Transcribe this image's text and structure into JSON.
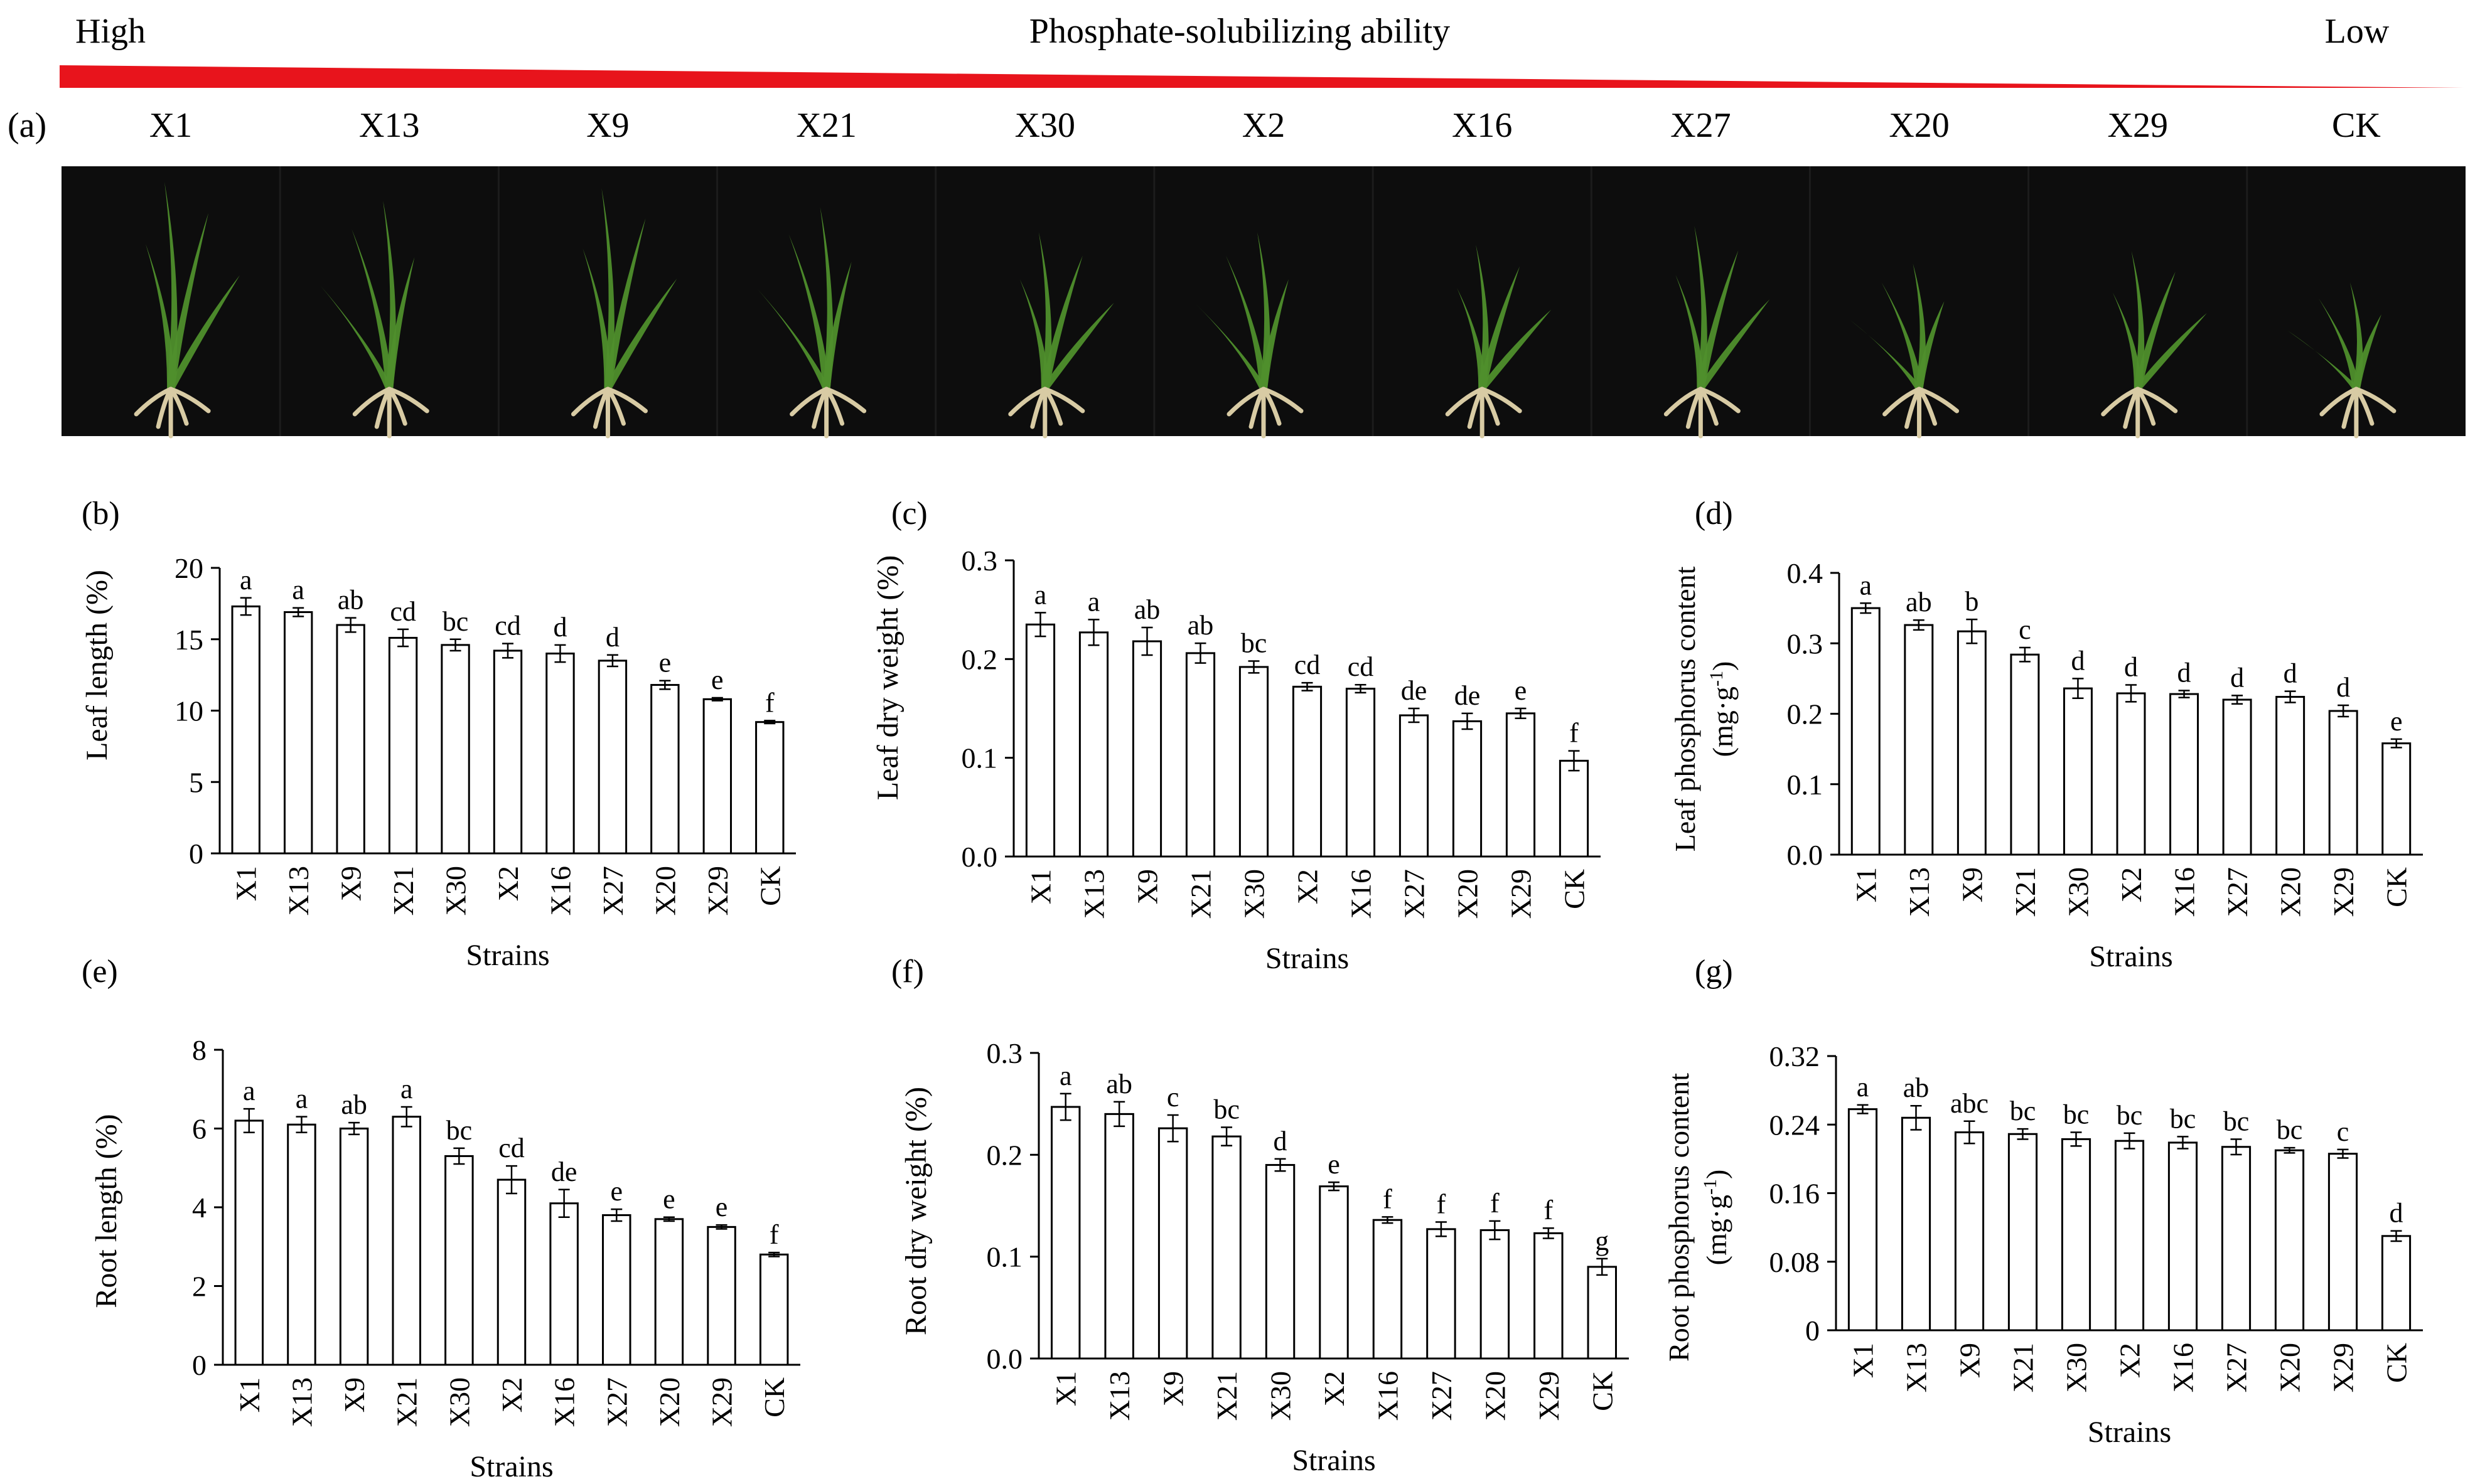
{
  "header": {
    "left_label": "High",
    "center_label": "Phosphate-solubilizing ability",
    "right_label": "Low",
    "gradient_color": "#e8141c",
    "panel_label": "(a)",
    "strains": [
      "X1",
      "X13",
      "X9",
      "X21",
      "X30",
      "X2",
      "X16",
      "X27",
      "X20",
      "X29",
      "CK"
    ]
  },
  "photo": {
    "background_color": "#0d0d0d",
    "leaf_color": "#4f8f2c",
    "root_color": "#d8cba4"
  },
  "chart_data": [
    {
      "panel": "(b)",
      "type": "bar",
      "categories": [
        "X1",
        "X13",
        "X9",
        "X21",
        "X30",
        "X2",
        "X16",
        "X27",
        "X20",
        "X29",
        "CK"
      ],
      "values": [
        17.3,
        16.9,
        16.0,
        15.1,
        14.6,
        14.2,
        14.0,
        13.5,
        11.8,
        10.8,
        9.2
      ],
      "errors": [
        0.6,
        0.3,
        0.5,
        0.6,
        0.4,
        0.5,
        0.6,
        0.4,
        0.3,
        0.1,
        0.1
      ],
      "letters": [
        "a",
        "a",
        "ab",
        "cd",
        "bc",
        "cd",
        "d",
        "d",
        "e",
        "e",
        "f"
      ],
      "ylabel": "Leaf length (%)",
      "xlabel": "Strains",
      "ylim": [
        0,
        20
      ],
      "yticks": [
        "0",
        "5",
        "10",
        "15",
        "20"
      ],
      "grid": false
    },
    {
      "panel": "(c)",
      "type": "bar",
      "categories": [
        "X1",
        "X13",
        "X9",
        "X21",
        "X30",
        "X2",
        "X16",
        "X27",
        "X20",
        "X29",
        "CK"
      ],
      "values": [
        0.235,
        0.227,
        0.218,
        0.206,
        0.192,
        0.172,
        0.17,
        0.143,
        0.137,
        0.145,
        0.097
      ],
      "errors": [
        0.012,
        0.013,
        0.014,
        0.01,
        0.006,
        0.004,
        0.004,
        0.007,
        0.008,
        0.005,
        0.01
      ],
      "letters": [
        "a",
        "a",
        "ab",
        "ab",
        "bc",
        "cd",
        "cd",
        "de",
        "de",
        "e",
        "f"
      ],
      "ylabel": "Leaf  dry weight (%)",
      "xlabel": "Strains",
      "ylim": [
        0,
        0.3
      ],
      "yticks": [
        "0.0",
        "0.1",
        "0.2",
        "0.3"
      ],
      "grid": false
    },
    {
      "panel": "(d)",
      "type": "bar",
      "categories": [
        "X1",
        "X13",
        "X9",
        "X21",
        "X30",
        "X2",
        "X16",
        "X27",
        "X20",
        "X29",
        "CK"
      ],
      "values": [
        0.35,
        0.326,
        0.317,
        0.284,
        0.236,
        0.229,
        0.228,
        0.22,
        0.224,
        0.204,
        0.158
      ],
      "errors": [
        0.007,
        0.007,
        0.017,
        0.01,
        0.014,
        0.012,
        0.005,
        0.006,
        0.008,
        0.008,
        0.006
      ],
      "letters": [
        "a",
        "ab",
        "b",
        "c",
        "d",
        "d",
        "d",
        "d",
        "d",
        "d",
        "e"
      ],
      "ylabel": "Leaf phosphorus content",
      "ylabel2": "(mg·g",
      "xlabel": "Strains",
      "ylim": [
        0,
        0.4
      ],
      "yticks": [
        "0.0",
        "0.1",
        "0.2",
        "0.3",
        "0.4"
      ],
      "grid": false
    },
    {
      "panel": "(e)",
      "type": "bar",
      "categories": [
        "X1",
        "X13",
        "X9",
        "X21",
        "X30",
        "X2",
        "X16",
        "X27",
        "X20",
        "X29",
        "CK"
      ],
      "values": [
        6.2,
        6.1,
        6.0,
        6.3,
        5.3,
        4.7,
        4.1,
        3.8,
        3.7,
        3.5,
        2.8
      ],
      "errors": [
        0.3,
        0.2,
        0.15,
        0.25,
        0.2,
        0.35,
        0.35,
        0.15,
        0.05,
        0.05,
        0.05
      ],
      "letters": [
        "a",
        "a",
        "ab",
        "a",
        "bc",
        "cd",
        "de",
        "e",
        "e",
        "e",
        "f"
      ],
      "ylabel": "Root length (%)",
      "xlabel": "Strains",
      "ylim": [
        0,
        8
      ],
      "yticks": [
        "0",
        "2",
        "4",
        "6",
        "8"
      ],
      "grid": false
    },
    {
      "panel": "(f)",
      "type": "bar",
      "categories": [
        "X1",
        "X13",
        "X9",
        "X21",
        "X30",
        "X2",
        "X16",
        "X27",
        "X20",
        "X29",
        "CK"
      ],
      "values": [
        0.247,
        0.24,
        0.226,
        0.218,
        0.19,
        0.169,
        0.136,
        0.127,
        0.126,
        0.123,
        0.09
      ],
      "errors": [
        0.013,
        0.012,
        0.013,
        0.009,
        0.006,
        0.004,
        0.003,
        0.007,
        0.009,
        0.005,
        0.008
      ],
      "letters": [
        "a",
        "ab",
        "c",
        "bc",
        "d",
        "e",
        "f",
        "f",
        "f",
        "f",
        "g"
      ],
      "ylabel": "Root dry weight  (%)",
      "xlabel": "Strains",
      "ylim": [
        0,
        0.3
      ],
      "yticks": [
        "0.0",
        "0.1",
        "0.2",
        "0.3"
      ],
      "grid": false
    },
    {
      "panel": "(g)",
      "type": "bar",
      "categories": [
        "X1",
        "X13",
        "X9",
        "X21",
        "X30",
        "X2",
        "X16",
        "X27",
        "X20",
        "X29",
        "CK"
      ],
      "values": [
        0.258,
        0.248,
        0.231,
        0.229,
        0.223,
        0.221,
        0.219,
        0.214,
        0.21,
        0.206,
        0.11
      ],
      "errors": [
        0.005,
        0.014,
        0.013,
        0.006,
        0.008,
        0.009,
        0.007,
        0.009,
        0.003,
        0.005,
        0.006
      ],
      "letters": [
        "a",
        "ab",
        "abc",
        "bc",
        "bc",
        "bc",
        "bc",
        "bc",
        "bc",
        "c",
        "d"
      ],
      "ylabel": "Root phosphorus content",
      "ylabel2": "(mg·g",
      "xlabel": "Strains",
      "ylim": [
        0,
        0.32
      ],
      "yticks": [
        "0",
        "0.08",
        "0.16",
        "0.24",
        "0.32"
      ],
      "grid": false
    }
  ]
}
